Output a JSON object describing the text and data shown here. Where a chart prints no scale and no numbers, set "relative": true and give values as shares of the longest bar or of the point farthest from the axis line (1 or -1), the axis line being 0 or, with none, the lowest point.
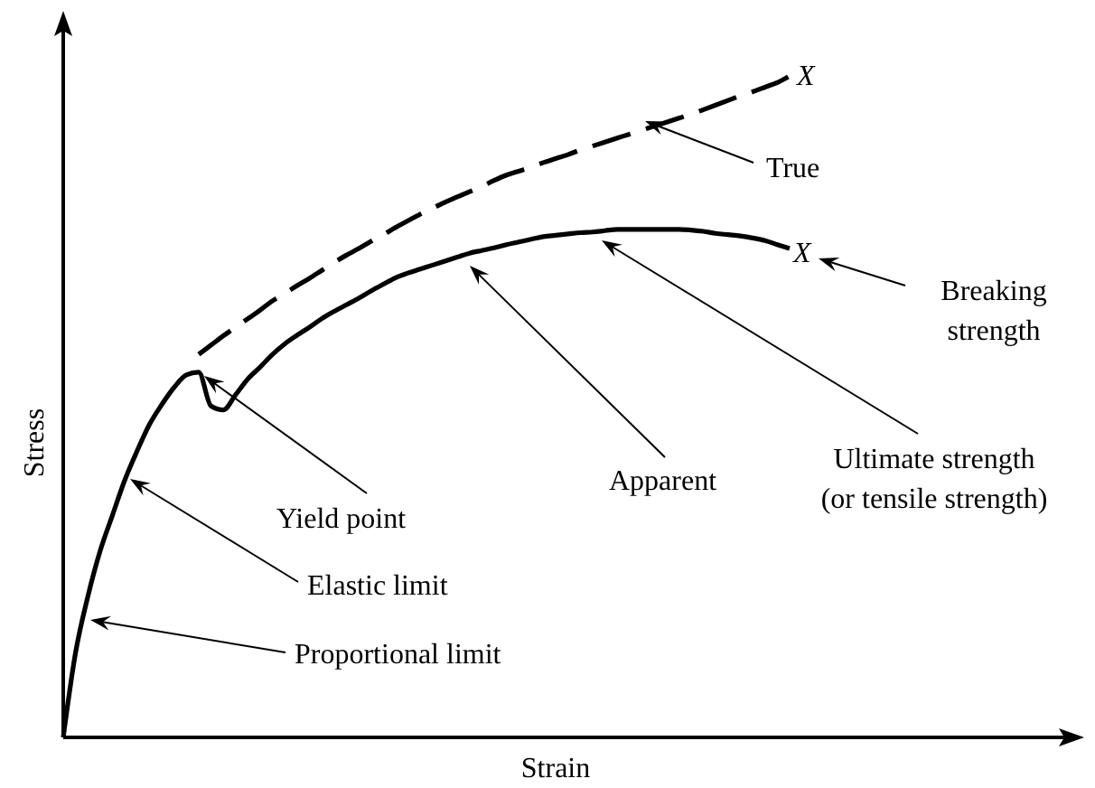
{
  "chart_data": {
    "type": "line",
    "relative": true,
    "xlabel": "Strain",
    "ylabel": "Stress",
    "marker": "none",
    "categories": [
      null,
      null,
      null,
      null,
      null,
      null,
      null,
      null,
      null,
      null,
      null,
      null,
      null,
      null,
      null,
      null,
      null,
      null,
      null,
      null,
      null,
      null,
      null,
      null,
      null,
      null,
      null,
      null,
      null,
      null,
      null,
      null,
      null,
      null,
      null,
      null,
      null,
      null,
      null,
      null,
      null,
      null,
      null,
      null,
      null,
      null,
      null,
      null,
      null,
      null,
      null,
      null,
      null,
      null,
      null,
      null,
      null,
      null,
      null,
      null
    ],
    "series": [
      {
        "color": "#000000",
        "line_style": "solid",
        "values": [
          0,
          0.128,
          0.213,
          0.282,
          0.336,
          0.389,
          0.433,
          0.473,
          0.503,
          0.529,
          0.548,
          0.552,
          0.501,
          0.495,
          0.518,
          0.542,
          0.56,
          0.579,
          0.595,
          0.608,
          0.62,
          0.633,
          0.644,
          0.654,
          0.664,
          0.675,
          0.685,
          0.695,
          0.702,
          0.708,
          0.714,
          0.72,
          0.726,
          0.732,
          0.736,
          0.74,
          0.745,
          0.749,
          0.753,
          0.757,
          0.759,
          0.761,
          0.763,
          0.764,
          0.766,
          0.768,
          0.768,
          0.768,
          0.768,
          0.768,
          0.768,
          0.767,
          0.765,
          0.762,
          0.76,
          0.758,
          0.755,
          0.751,
          0.745,
          0.739
        ]
      },
      {
        "color": "#000000",
        "line_style": "dashed",
        "values": [
          null,
          null,
          null,
          null,
          null,
          null,
          null,
          null,
          null,
          null,
          null,
          0.579,
          0.593,
          0.607,
          0.62,
          0.633,
          0.646,
          0.66,
          0.671,
          0.683,
          0.694,
          0.706,
          0.718,
          0.729,
          0.739,
          0.75,
          0.76,
          0.771,
          0.781,
          0.791,
          0.8,
          0.809,
          0.817,
          0.825,
          0.833,
          0.842,
          0.85,
          0.856,
          0.862,
          0.869,
          0.875,
          0.881,
          0.888,
          0.894,
          0.9,
          0.906,
          0.912,
          0.918,
          0.924,
          0.93,
          0.936,
          0.942,
          0.949,
          0.956,
          0.963,
          0.97,
          0.976,
          0.983,
          0.99,
          1.0
        ]
      }
    ],
    "annotations": [
      "Proportional limit",
      "Elastic limit",
      "Yield point",
      "Apparent",
      "Ultimate strength\n(or tensile strength)",
      "Breaking\nstrength",
      "True",
      "X",
      "X"
    ]
  }
}
